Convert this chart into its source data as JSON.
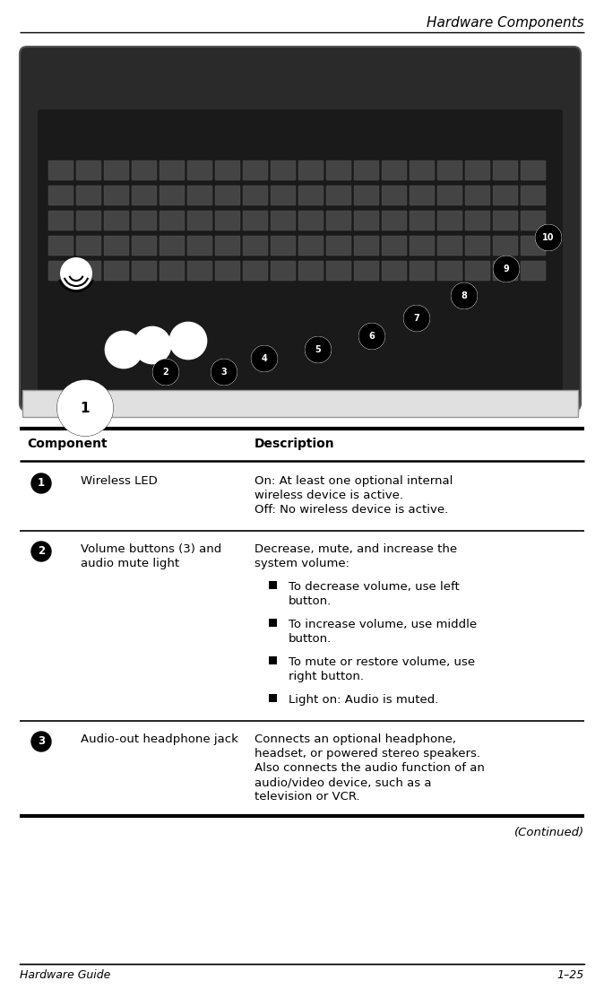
{
  "page_title": "Hardware Components",
  "footer_left": "Hardware Guide",
  "footer_right": "1–25",
  "table_header": [
    "Component",
    "Description"
  ],
  "rows": [
    {
      "num": "1",
      "component": "Wireless LED",
      "desc_lines": [
        "On: At least one optional internal",
        "wireless device is active.",
        "Off: No wireless device is active."
      ],
      "bullets": []
    },
    {
      "num": "2",
      "component_lines": [
        "Volume buttons (3) and",
        "audio mute light"
      ],
      "desc_lines": [
        "Decrease, mute, and increase the",
        "system volume:"
      ],
      "bullets": [
        [
          "To decrease volume, use left",
          "button."
        ],
        [
          "To increase volume, use middle",
          "button."
        ],
        [
          "To mute or restore volume, use",
          "right button."
        ],
        [
          "Light on: Audio is muted."
        ]
      ]
    },
    {
      "num": "3",
      "component": "Audio-out headphone jack",
      "desc_lines": [
        "Connects an optional headphone,",
        "headset, or powered stereo speakers.",
        "Also connects the audio function of an",
        "audio/video device, such as a",
        "television or VCR."
      ],
      "bullets": []
    }
  ],
  "continued_text": "(Continued)",
  "bg_color": "#ffffff",
  "text_color": "#000000",
  "line_color": "#000000",
  "font_size_title": 11,
  "font_size_header": 10,
  "font_size_body": 9.5,
  "font_size_footer": 9
}
